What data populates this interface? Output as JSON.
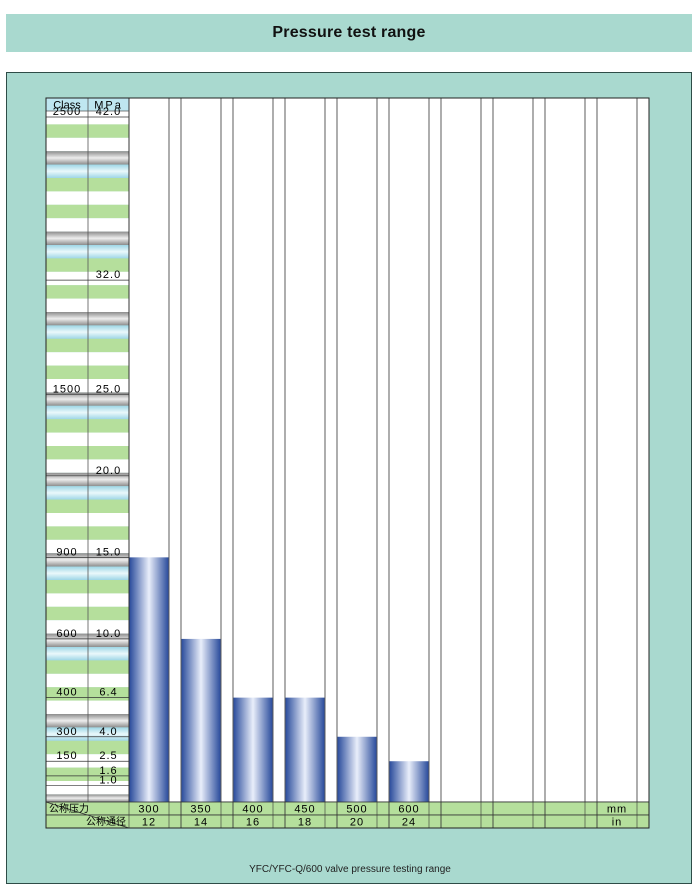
{
  "page": {
    "title": "Pressure test range",
    "caption": "YFC/YFC-Q/600 valve pressure testing range"
  },
  "colors": {
    "panel": "#a9d9cf",
    "bar": "#3b5fae",
    "row_white": "#ffffff",
    "row_green": "#b5df9c",
    "row_blue": "#bfe6f0",
    "row_gray": "#a8a8a8"
  },
  "header": {
    "class_label": "Class",
    "mpa_label": "MPa"
  },
  "footer": {
    "pressure_label": "公称压力",
    "diameter_label": "公称通径",
    "unit_mm": "mm",
    "unit_in": "in"
  },
  "chart_data": {
    "type": "bar",
    "categories_mm": [
      "300",
      "350",
      "400",
      "450",
      "500",
      "600",
      "",
      "",
      "",
      ""
    ],
    "categories_in": [
      "12",
      "14",
      "16",
      "18",
      "20",
      "24",
      "",
      "",
      "",
      ""
    ],
    "values": [
      15.0,
      10.0,
      6.4,
      6.4,
      4.0,
      2.5,
      null,
      null,
      null,
      null
    ],
    "ylabel": "MPa",
    "ylim": [
      0,
      42.0
    ],
    "y_ticks": [
      {
        "class": "2500",
        "mpa": "42.0",
        "value": 42.0
      },
      {
        "class": "",
        "mpa": "32.0",
        "value": 32.0
      },
      {
        "class": "1500",
        "mpa": "25.0",
        "value": 25.0
      },
      {
        "class": "",
        "mpa": "20.0",
        "value": 20.0
      },
      {
        "class": "900",
        "mpa": "15.0",
        "value": 15.0
      },
      {
        "class": "600",
        "mpa": "10.0",
        "value": 10.0
      },
      {
        "class": "400",
        "mpa": "6.4",
        "value": 6.4
      },
      {
        "class": "300",
        "mpa": "4.0",
        "value": 4.0
      },
      {
        "class": "150",
        "mpa": "2.5",
        "value": 2.5
      },
      {
        "class": "",
        "mpa": "1.6",
        "value": 1.6
      },
      {
        "class": "",
        "mpa": "1.0",
        "value": 1.0
      }
    ],
    "grid": true
  }
}
